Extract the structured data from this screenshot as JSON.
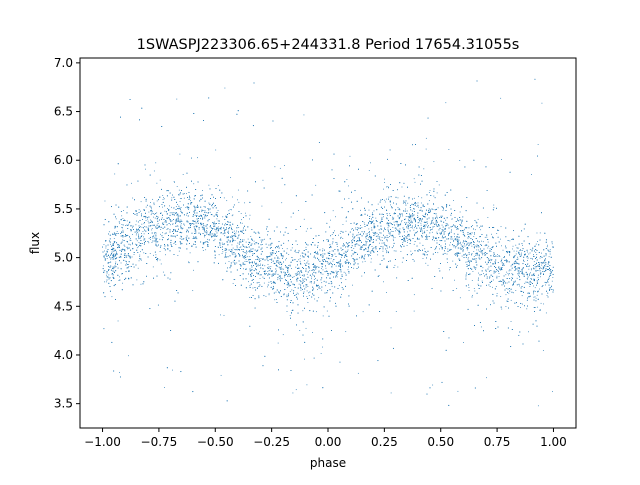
{
  "chart_data": {
    "type": "scatter",
    "title": "1SWASPJ223306.65+244331.8 Period 17654.31055s",
    "xlabel": "phase",
    "ylabel": "flux",
    "xlim": [
      -1.1,
      1.1
    ],
    "ylim": [
      3.25,
      7.05
    ],
    "xticks": [
      {
        "value": -1.0,
        "label": "−1.00"
      },
      {
        "value": -0.75,
        "label": "−0.75"
      },
      {
        "value": -0.5,
        "label": "−0.50"
      },
      {
        "value": -0.25,
        "label": "−0.25"
      },
      {
        "value": 0.0,
        "label": "0.00"
      },
      {
        "value": 0.25,
        "label": "0.25"
      },
      {
        "value": 0.5,
        "label": "0.50"
      },
      {
        "value": 0.75,
        "label": "0.75"
      },
      {
        "value": 1.0,
        "label": "1.00"
      }
    ],
    "yticks": [
      {
        "value": 3.5,
        "label": "3.5"
      },
      {
        "value": 4.0,
        "label": "4.0"
      },
      {
        "value": 4.5,
        "label": "4.5"
      },
      {
        "value": 5.0,
        "label": "5.0"
      },
      {
        "value": 5.5,
        "label": "5.5"
      },
      {
        "value": 6.0,
        "label": "6.0"
      },
      {
        "value": 6.5,
        "label": "6.5"
      },
      {
        "value": 7.0,
        "label": "7.0"
      }
    ],
    "grid": false,
    "legend": "none",
    "point_color": "#1f77b4",
    "series": [
      {
        "phase": [
          -1.0,
          -0.9,
          -0.8,
          -0.7,
          -0.6,
          -0.5,
          -0.4,
          -0.3,
          -0.2,
          -0.1,
          0.0,
          0.1,
          0.2,
          0.3,
          0.4,
          0.5,
          0.6,
          0.7,
          0.8,
          0.9,
          1.0
        ],
        "flux_center": [
          4.97,
          5.12,
          5.28,
          5.38,
          5.4,
          5.3,
          5.13,
          4.95,
          4.85,
          4.82,
          4.9,
          5.07,
          5.23,
          5.35,
          5.38,
          5.28,
          5.12,
          4.97,
          4.88,
          4.86,
          4.88
        ],
        "scatter_range": [
          3.45,
          6.85
        ]
      }
    ]
  }
}
